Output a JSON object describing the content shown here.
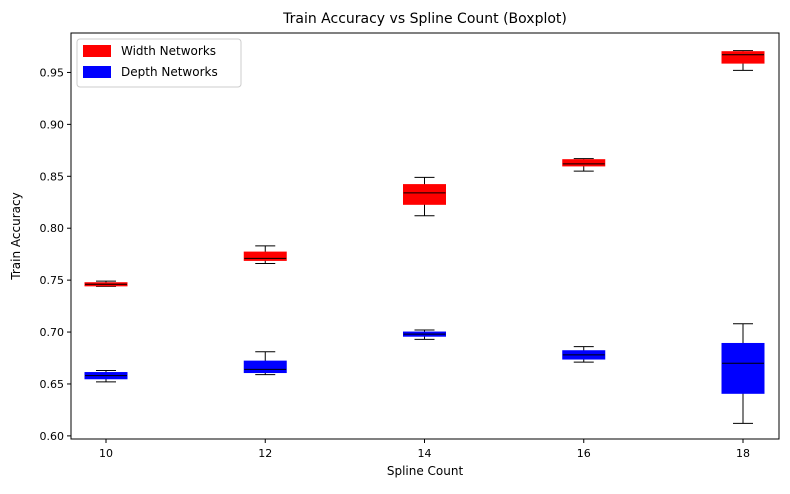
{
  "chart_data": {
    "type": "boxplot",
    "title": "Train Accuracy vs Spline Count (Boxplot)",
    "xlabel": "Spline Count",
    "ylabel": "Train Accuracy",
    "categories": [
      "10",
      "12",
      "14",
      "16",
      "18"
    ],
    "ylim": [
      0.597,
      0.988
    ],
    "yticks": [
      "0.60",
      "0.65",
      "0.70",
      "0.75",
      "0.80",
      "0.85",
      "0.90",
      "0.95"
    ],
    "legend_position": "top-left",
    "grid": false,
    "series": [
      {
        "name": "Width Networks",
        "color": "#ff0000",
        "boxes": [
          {
            "min": 0.744,
            "q1": 0.7445,
            "median": 0.746,
            "q3": 0.7475,
            "max": 0.749
          },
          {
            "min": 0.766,
            "q1": 0.769,
            "median": 0.771,
            "q3": 0.777,
            "max": 0.783
          },
          {
            "min": 0.812,
            "q1": 0.823,
            "median": 0.834,
            "q3": 0.842,
            "max": 0.849
          },
          {
            "min": 0.855,
            "q1": 0.86,
            "median": 0.862,
            "q3": 0.866,
            "max": 0.867
          },
          {
            "min": 0.952,
            "q1": 0.959,
            "median": 0.967,
            "q3": 0.97,
            "max": 0.971
          }
        ]
      },
      {
        "name": "Depth Networks",
        "color": "#0000ff",
        "boxes": [
          {
            "min": 0.652,
            "q1": 0.655,
            "median": 0.658,
            "q3": 0.661,
            "max": 0.663
          },
          {
            "min": 0.659,
            "q1": 0.661,
            "median": 0.664,
            "q3": 0.672,
            "max": 0.681
          },
          {
            "min": 0.693,
            "q1": 0.696,
            "median": 0.698,
            "q3": 0.7,
            "max": 0.702
          },
          {
            "min": 0.671,
            "q1": 0.674,
            "median": 0.678,
            "q3": 0.682,
            "max": 0.686
          },
          {
            "min": 0.612,
            "q1": 0.641,
            "median": 0.67,
            "q3": 0.689,
            "max": 0.708
          }
        ]
      }
    ]
  }
}
